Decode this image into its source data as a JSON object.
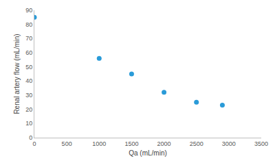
{
  "chart_data": {
    "type": "scatter",
    "x_label": "Qa (mL/min)",
    "y_label": "Renal artery flow (mL/min)",
    "x": [
      0,
      1000,
      1500,
      2000,
      2500,
      2900
    ],
    "values": [
      85,
      56,
      45,
      32,
      25,
      23
    ],
    "color": "#2a9bd8",
    "marker": "circle",
    "xlim": [
      0,
      3500
    ],
    "xticks": [
      0,
      500,
      1000,
      1500,
      2000,
      2500,
      3000,
      3500
    ],
    "ylim": [
      0,
      90
    ],
    "yticks": [
      0,
      10,
      20,
      30,
      40,
      50,
      60,
      70,
      80,
      90
    ],
    "grid": false
  }
}
